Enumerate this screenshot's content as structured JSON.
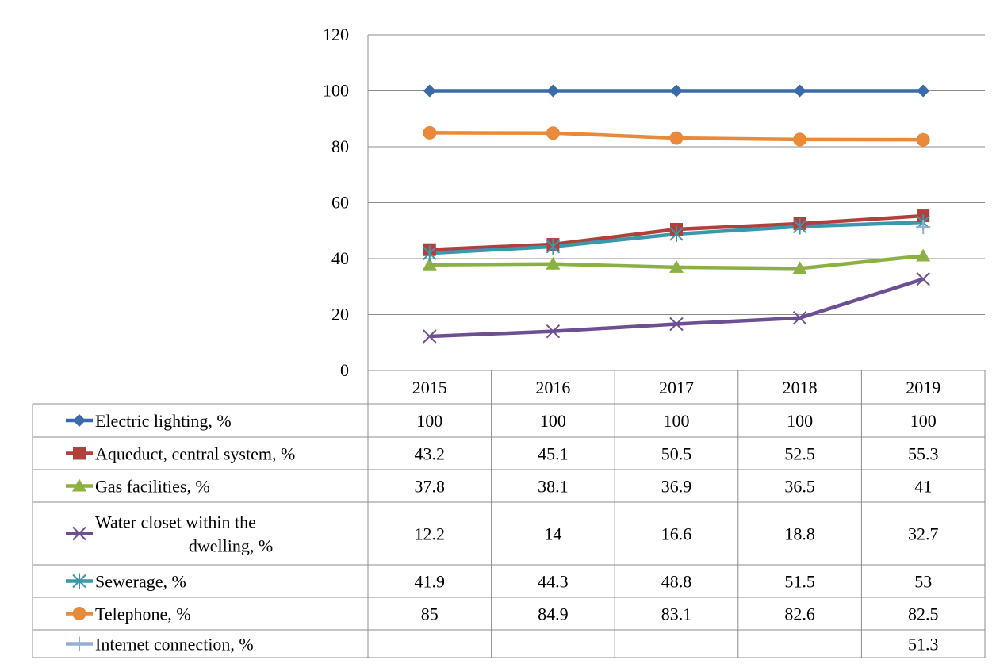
{
  "chart_data": {
    "type": "line",
    "categories": [
      "2015",
      "2016",
      "2017",
      "2018",
      "2019"
    ],
    "ylim": [
      0,
      120
    ],
    "yticks": [
      0,
      20,
      40,
      60,
      80,
      100,
      120
    ],
    "grid": true,
    "legend_placement": "data-table-bottom",
    "series": [
      {
        "name": "Electric lighting, %",
        "values": [
          100,
          100,
          100,
          100,
          100
        ],
        "color": "#3a6aaa",
        "marker": "diamond"
      },
      {
        "name": "Aqueduct, central system, %",
        "values": [
          43.2,
          45.1,
          50.5,
          52.5,
          55.3
        ],
        "color": "#b13f3b",
        "marker": "square"
      },
      {
        "name": "Gas facilities, %",
        "values": [
          37.8,
          38.1,
          36.9,
          36.5,
          41
        ],
        "color": "#8cb142",
        "marker": "triangle"
      },
      {
        "name": "Water closet within the dwelling, %",
        "values": [
          12.2,
          14,
          16.6,
          18.8,
          32.7
        ],
        "color": "#6d4f93",
        "marker": "x"
      },
      {
        "name": "Sewerage, %",
        "values": [
          41.9,
          44.3,
          48.8,
          51.5,
          53
        ],
        "color": "#3a98ac",
        "marker": "star"
      },
      {
        "name": "Telephone, %",
        "values": [
          85,
          84.9,
          83.1,
          82.6,
          82.5
        ],
        "color": "#e88a3a",
        "marker": "circle"
      },
      {
        "name": "Internet connection, %",
        "values": [
          null,
          null,
          null,
          null,
          51.3
        ],
        "color": "#94afd6",
        "marker": "plus"
      }
    ]
  }
}
